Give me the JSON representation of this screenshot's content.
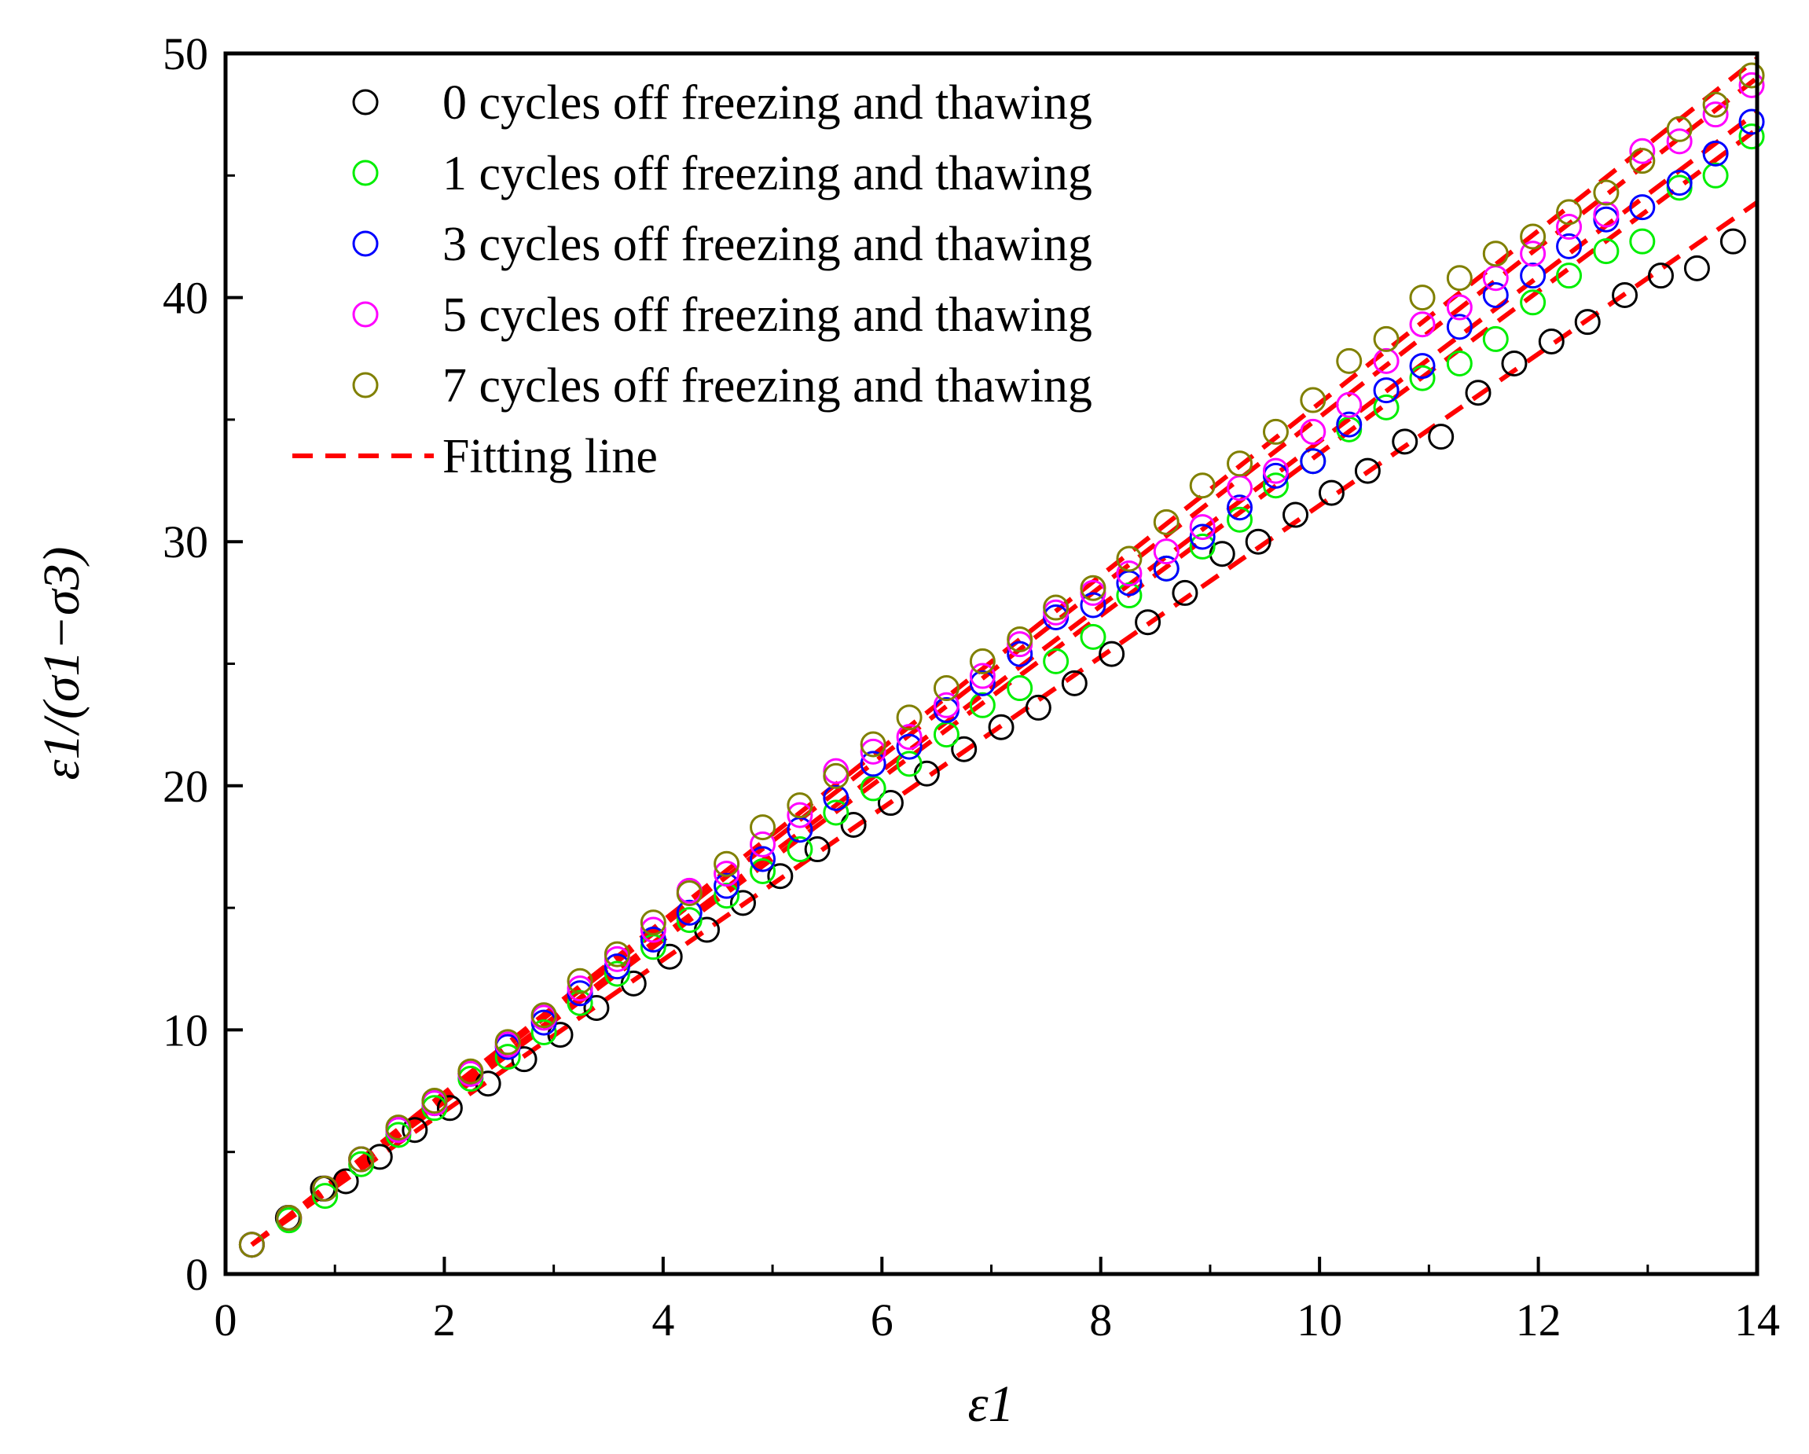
{
  "chart_data": {
    "type": "scatter",
    "title": "",
    "xlabel": "ε1",
    "ylabel": "ε1/(σ1−σ3)",
    "xlim": [
      0,
      14
    ],
    "ylim": [
      0,
      50
    ],
    "xticks": [
      0,
      2,
      4,
      6,
      8,
      10,
      12,
      14
    ],
    "yticks": [
      0,
      10,
      20,
      30,
      40,
      50
    ],
    "grid": false,
    "legend_position": "top-left",
    "series": [
      {
        "name": "0 cycles off freezing and thawing",
        "color": "#000000",
        "marker": "open-circle",
        "x": [
          0.24,
          0.57,
          0.89,
          1.1,
          1.41,
          1.73,
          2.05,
          2.4,
          2.73,
          3.06,
          3.39,
          3.73,
          4.06,
          4.4,
          4.73,
          5.07,
          5.41,
          5.74,
          6.08,
          6.41,
          6.75,
          7.09,
          7.43,
          7.76,
          8.1,
          8.43,
          8.77,
          9.11,
          9.44,
          9.78,
          10.11,
          10.44,
          10.78,
          11.11,
          11.45,
          11.78,
          12.12,
          12.45,
          12.79,
          13.12,
          13.45,
          13.78
        ],
        "y": [
          1.2,
          2.3,
          3.5,
          3.8,
          4.8,
          5.9,
          6.8,
          7.8,
          8.8,
          9.8,
          10.9,
          11.9,
          13.0,
          14.1,
          15.2,
          16.3,
          17.4,
          18.4,
          19.3,
          20.5,
          21.5,
          22.4,
          23.2,
          24.2,
          25.4,
          26.7,
          27.9,
          29.5,
          30.0,
          31.1,
          32.0,
          32.9,
          34.1,
          34.3,
          36.1,
          37.3,
          38.2,
          39.0,
          40.1,
          40.9,
          41.2,
          42.3
        ]
      },
      {
        "name": "1 cycles off freezing and thawing",
        "color": "#00ee00",
        "marker": "open-circle",
        "x": [
          0.24,
          0.58,
          0.91,
          1.24,
          1.58,
          1.91,
          2.24,
          2.58,
          2.91,
          3.24,
          3.58,
          3.91,
          4.24,
          4.58,
          4.91,
          5.25,
          5.58,
          5.92,
          6.25,
          6.59,
          6.92,
          7.26,
          7.59,
          7.93,
          8.26,
          8.6,
          8.93,
          9.27,
          9.6,
          9.94,
          10.27,
          10.61,
          10.94,
          11.28,
          11.61,
          11.95,
          12.28,
          12.62,
          12.95,
          13.29,
          13.62,
          13.95
        ],
        "y": [
          1.2,
          2.2,
          3.2,
          4.5,
          5.7,
          6.8,
          8.0,
          8.9,
          9.9,
          11.1,
          12.3,
          13.4,
          14.5,
          15.5,
          16.5,
          17.4,
          18.9,
          19.9,
          20.9,
          22.1,
          23.3,
          24.0,
          25.1,
          26.1,
          27.8,
          28.9,
          29.8,
          30.9,
          32.3,
          33.3,
          34.6,
          35.5,
          36.7,
          37.3,
          38.3,
          39.8,
          40.9,
          41.9,
          42.3,
          44.5,
          45.0,
          46.6
        ]
      },
      {
        "name": "3 cycles off freezing and thawing",
        "color": "#0000ff",
        "marker": "open-circle",
        "x": [
          0.24,
          0.58,
          0.91,
          1.24,
          1.58,
          1.91,
          2.24,
          2.58,
          2.91,
          3.24,
          3.58,
          3.91,
          4.24,
          4.58,
          4.91,
          5.25,
          5.58,
          5.92,
          6.25,
          6.59,
          6.92,
          7.26,
          7.59,
          7.93,
          8.26,
          8.6,
          8.93,
          9.27,
          9.6,
          9.94,
          10.27,
          10.61,
          10.94,
          11.28,
          11.61,
          11.95,
          12.28,
          12.62,
          12.95,
          13.29,
          13.62,
          13.95
        ],
        "y": [
          1.2,
          2.3,
          3.5,
          4.7,
          5.9,
          7.0,
          8.2,
          9.3,
          10.3,
          11.5,
          12.6,
          13.7,
          14.8,
          15.9,
          17.0,
          18.2,
          19.5,
          20.9,
          21.6,
          23.1,
          24.2,
          25.4,
          26.9,
          27.4,
          28.3,
          28.9,
          30.2,
          31.4,
          32.7,
          33.3,
          34.8,
          36.2,
          37.2,
          38.8,
          40.1,
          40.9,
          42.1,
          43.2,
          43.7,
          44.7,
          45.9,
          47.2
        ]
      },
      {
        "name": "5 cycles off freezing and thawing",
        "color": "#ff00ff",
        "marker": "open-circle",
        "x": [
          0.24,
          0.58,
          0.91,
          1.24,
          1.58,
          1.91,
          2.24,
          2.58,
          2.91,
          3.24,
          3.58,
          3.91,
          4.24,
          4.58,
          4.91,
          5.25,
          5.58,
          5.92,
          6.25,
          6.59,
          6.92,
          7.26,
          7.59,
          7.93,
          8.26,
          8.6,
          8.93,
          9.27,
          9.6,
          9.94,
          10.27,
          10.61,
          10.94,
          11.28,
          11.61,
          11.95,
          12.28,
          12.62,
          12.95,
          13.29,
          13.62,
          13.95
        ],
        "y": [
          1.2,
          2.3,
          3.5,
          4.7,
          5.9,
          7.0,
          8.2,
          9.4,
          10.5,
          11.7,
          12.9,
          14.1,
          15.7,
          16.4,
          17.6,
          18.8,
          20.6,
          21.4,
          22.0,
          23.3,
          24.5,
          25.8,
          27.1,
          27.9,
          28.7,
          29.6,
          30.6,
          32.2,
          32.9,
          34.5,
          35.6,
          37.4,
          38.9,
          39.6,
          40.8,
          41.8,
          42.9,
          43.4,
          46.0,
          46.4,
          47.5,
          48.7
        ]
      },
      {
        "name": "7 cycles off freezing and thawing",
        "color": "#808000",
        "marker": "open-circle",
        "x": [
          0.24,
          0.58,
          0.91,
          1.24,
          1.58,
          1.91,
          2.24,
          2.58,
          2.91,
          3.24,
          3.58,
          3.91,
          4.24,
          4.58,
          4.91,
          5.25,
          5.58,
          5.92,
          6.25,
          6.59,
          6.92,
          7.26,
          7.59,
          7.93,
          8.26,
          8.6,
          8.93,
          9.27,
          9.6,
          9.94,
          10.27,
          10.61,
          10.94,
          11.28,
          11.61,
          11.95,
          12.28,
          12.62,
          12.95,
          13.29,
          13.62,
          13.95
        ],
        "y": [
          1.2,
          2.3,
          3.5,
          4.7,
          6.0,
          7.1,
          8.3,
          9.5,
          10.6,
          12.0,
          13.1,
          14.4,
          15.6,
          16.8,
          18.3,
          19.2,
          20.4,
          21.7,
          22.8,
          24.0,
          25.1,
          26.0,
          27.3,
          28.1,
          29.3,
          30.8,
          32.3,
          33.2,
          34.5,
          35.8,
          37.4,
          38.3,
          40.0,
          40.8,
          41.8,
          42.5,
          43.5,
          44.3,
          45.6,
          46.9,
          47.9,
          49.1
        ]
      }
    ],
    "fit_legend_label": "Fitting line",
    "fit_color": "#ff0000",
    "fit_lines": [
      {
        "x": [
          0.24,
          14.0
        ],
        "y": [
          1.2,
          43.9
        ]
      },
      {
        "x": [
          0.24,
          14.0
        ],
        "y": [
          1.2,
          46.9
        ]
      },
      {
        "x": [
          0.24,
          14.0
        ],
        "y": [
          1.2,
          47.6
        ]
      },
      {
        "x": [
          0.24,
          14.0
        ],
        "y": [
          1.2,
          49.0
        ]
      },
      {
        "x": [
          0.24,
          14.0
        ],
        "y": [
          1.2,
          49.8
        ]
      }
    ]
  }
}
